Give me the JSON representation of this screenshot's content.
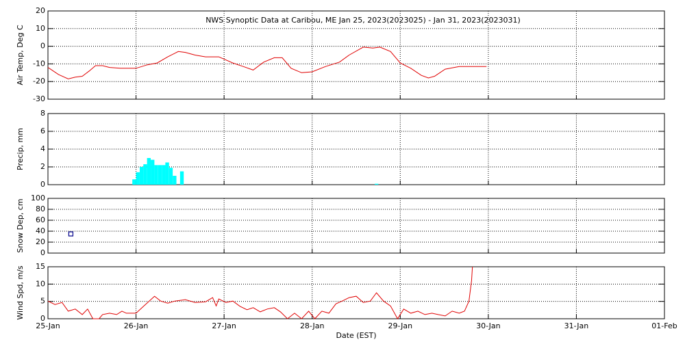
{
  "chart_data": [
    {
      "type": "line",
      "title": "NWS Synoptic Data at Caribou, ME   Jan 25, 2023(2023025) - Jan 31, 2023(2023031)",
      "ylabel": "Air Temp, Deg C",
      "color": "#e00000",
      "ylim": [
        -30,
        20
      ],
      "yticks": [
        -30,
        -20,
        -10,
        0,
        10,
        20
      ],
      "grid": true,
      "x": [
        0,
        0.12,
        0.23,
        0.31,
        0.39,
        0.47,
        0.54,
        0.62,
        0.7,
        0.82,
        1.0,
        1.13,
        1.24,
        1.36,
        1.44,
        1.48,
        1.56,
        1.67,
        1.79,
        1.94,
        2.1,
        2.22,
        2.33,
        2.45,
        2.57,
        2.66,
        2.76,
        2.88,
        3.0,
        3.15,
        3.31,
        3.42,
        3.58,
        3.69,
        3.77,
        3.89,
        4.0,
        4.12,
        4.24,
        4.32,
        4.39,
        4.51,
        4.67,
        4.98
      ],
      "values": [
        -12,
        -16,
        -18.5,
        -17.5,
        -17,
        -14,
        -11,
        -11,
        -12,
        -12.5,
        -12.5,
        -10.5,
        -9.5,
        -6,
        -4,
        -3,
        -3.5,
        -5,
        -6,
        -6,
        -9.5,
        -11.5,
        -13.5,
        -9,
        -6.5,
        -6.5,
        -12.5,
        -15,
        -14.5,
        -11.5,
        -9,
        -5,
        -0.5,
        -1,
        -0.5,
        -3,
        -9.5,
        -12.5,
        -16.5,
        -18,
        -17,
        -13,
        -11.5,
        -11.5
      ]
    },
    {
      "type": "bar",
      "ylabel": "Precip, mm",
      "color": "#00ffff",
      "ylim": [
        0,
        8
      ],
      "yticks": [
        0,
        2,
        4,
        6,
        8
      ],
      "grid": true,
      "x": [
        0.958,
        1.0,
        1.042,
        1.083,
        1.125,
        1.167,
        1.208,
        1.25,
        1.292,
        1.333,
        1.375,
        1.417,
        1.5,
        3.71
      ],
      "values": [
        0.6,
        1.4,
        2.0,
        2.3,
        3.0,
        2.8,
        2.2,
        2.2,
        2.2,
        2.5,
        1.9,
        1.0,
        1.5,
        0.1
      ]
    },
    {
      "type": "scatter",
      "ylabel": "Snow Dep, cm",
      "color": "#00008b",
      "ylim": [
        0,
        100
      ],
      "yticks": [
        0,
        20,
        40,
        60,
        80,
        100
      ],
      "grid": true,
      "x": [
        0.26
      ],
      "values": [
        35
      ]
    },
    {
      "type": "line",
      "ylabel": "Wind Spd, m/s",
      "xlabel": "Date (EST)",
      "color": "#e00000",
      "ylim": [
        0,
        15
      ],
      "yticks": [
        0,
        5,
        10,
        15
      ],
      "grid": true,
      "xlim": [
        0,
        7
      ],
      "xticks": [
        {
          "value": 0,
          "label": "25-Jan"
        },
        {
          "value": 1,
          "label": "26-Jan"
        },
        {
          "value": 2,
          "label": "27-Jan"
        },
        {
          "value": 3,
          "label": "28-Jan"
        },
        {
          "value": 4,
          "label": "29-Jan"
        },
        {
          "value": 5,
          "label": "30-Jan"
        },
        {
          "value": 6,
          "label": "31-Jan"
        },
        {
          "value": 7,
          "label": "01-Feb"
        }
      ],
      "x": [
        0,
        0.08,
        0.16,
        0.23,
        0.31,
        0.39,
        0.45,
        0.51,
        0.58,
        0.62,
        0.7,
        0.78,
        0.84,
        0.89,
        1.0,
        1.09,
        1.21,
        1.28,
        1.36,
        1.44,
        1.56,
        1.67,
        1.79,
        1.87,
        1.91,
        1.94,
        2.02,
        2.1,
        2.18,
        2.26,
        2.33,
        2.41,
        2.49,
        2.57,
        2.64,
        2.72,
        2.8,
        2.88,
        2.96,
        3.03,
        3.11,
        3.19,
        3.27,
        3.34,
        3.42,
        3.5,
        3.58,
        3.66,
        3.73,
        3.81,
        3.89,
        3.97,
        4.04,
        4.12,
        4.2,
        4.28,
        4.36,
        4.43,
        4.51,
        4.59,
        4.67,
        4.73,
        4.78,
        4.81,
        4.82
      ],
      "values": [
        5.1,
        4.1,
        4.7,
        2.2,
        2.8,
        1.2,
        2.8,
        0,
        0,
        1.2,
        1.6,
        1.2,
        2.2,
        1.6,
        1.6,
        3.7,
        6.5,
        5.1,
        4.5,
        5.1,
        5.5,
        4.7,
        4.9,
        6.1,
        3.7,
        5.7,
        4.7,
        5.1,
        3.6,
        2.6,
        3.2,
        2.0,
        2.8,
        3.2,
        2.0,
        0,
        1.6,
        0,
        2.2,
        0,
        2.2,
        1.6,
        4.3,
        5.1,
        6.1,
        6.5,
        4.7,
        5.1,
        7.5,
        5.1,
        3.7,
        0,
        2.8,
        1.6,
        2.2,
        1.2,
        1.6,
        1.2,
        0.8,
        2.2,
        1.6,
        2.2,
        5.1,
        11,
        15
      ]
    }
  ]
}
